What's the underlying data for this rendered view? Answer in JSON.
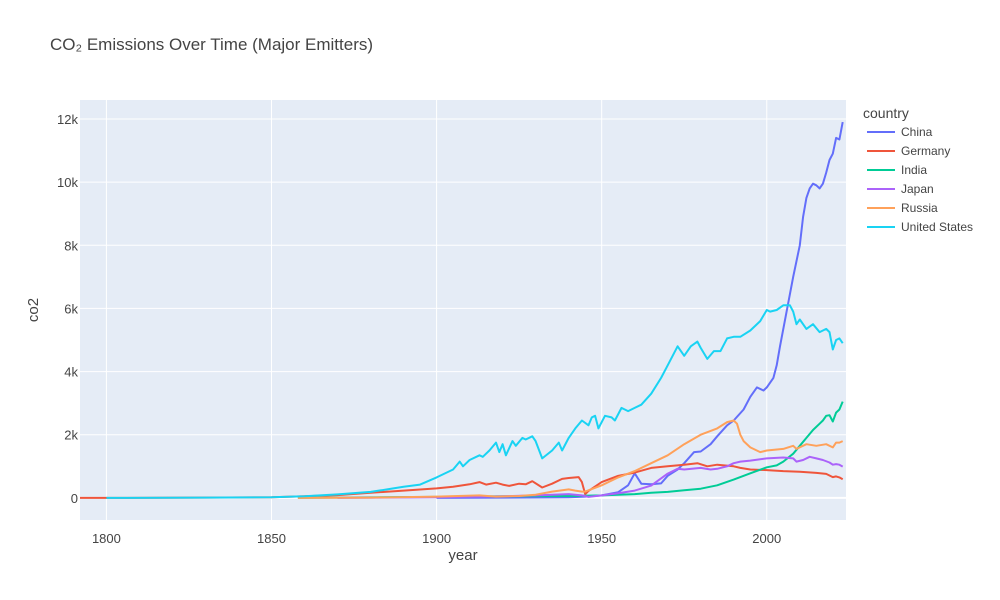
{
  "chart_data": {
    "type": "line",
    "title": "CO₂ Emissions Over Time (Major Emitters)",
    "xlabel": "year",
    "ylabel": "co2",
    "xlim": [
      1792,
      2024
    ],
    "ylim": [
      -700,
      12600
    ],
    "xticks": [
      1800,
      1850,
      1900,
      1950,
      2000
    ],
    "xtick_labels": [
      "1800",
      "1850",
      "1900",
      "1950",
      "2000"
    ],
    "yticks": [
      0,
      2000,
      4000,
      6000,
      8000,
      10000,
      12000
    ],
    "ytick_labels": [
      "0",
      "2k",
      "4k",
      "6k",
      "8k",
      "10k",
      "12k"
    ],
    "grid": true,
    "background": "#e5ecf6",
    "legend_title": "country",
    "legend_position": "right",
    "series": [
      {
        "name": "China",
        "color": "#636efa",
        "points": [
          [
            1900,
            0
          ],
          [
            1940,
            20
          ],
          [
            1945,
            40
          ],
          [
            1950,
            80
          ],
          [
            1955,
            180
          ],
          [
            1958,
            400
          ],
          [
            1960,
            780
          ],
          [
            1962,
            450
          ],
          [
            1965,
            430
          ],
          [
            1968,
            460
          ],
          [
            1970,
            700
          ],
          [
            1973,
            900
          ],
          [
            1975,
            1100
          ],
          [
            1978,
            1450
          ],
          [
            1980,
            1470
          ],
          [
            1983,
            1700
          ],
          [
            1985,
            1950
          ],
          [
            1988,
            2300
          ],
          [
            1990,
            2450
          ],
          [
            1993,
            2800
          ],
          [
            1995,
            3200
          ],
          [
            1997,
            3500
          ],
          [
            1999,
            3400
          ],
          [
            2000,
            3500
          ],
          [
            2002,
            3800
          ],
          [
            2003,
            4200
          ],
          [
            2004,
            4800
          ],
          [
            2006,
            5900
          ],
          [
            2008,
            7000
          ],
          [
            2010,
            8000
          ],
          [
            2011,
            8900
          ],
          [
            2012,
            9500
          ],
          [
            2013,
            9800
          ],
          [
            2014,
            9950
          ],
          [
            2015,
            9900
          ],
          [
            2016,
            9800
          ],
          [
            2017,
            9950
          ],
          [
            2018,
            10300
          ],
          [
            2019,
            10700
          ],
          [
            2020,
            10900
          ],
          [
            2021,
            11400
          ],
          [
            2022,
            11350
          ],
          [
            2023,
            11900
          ]
        ]
      },
      {
        "name": "Germany",
        "color": "#ef553b",
        "points": [
          [
            1792,
            0
          ],
          [
            1800,
            0
          ],
          [
            1850,
            20
          ],
          [
            1860,
            50
          ],
          [
            1870,
            90
          ],
          [
            1880,
            160
          ],
          [
            1890,
            230
          ],
          [
            1900,
            300
          ],
          [
            1905,
            350
          ],
          [
            1910,
            430
          ],
          [
            1913,
            500
          ],
          [
            1915,
            420
          ],
          [
            1918,
            480
          ],
          [
            1920,
            420
          ],
          [
            1922,
            380
          ],
          [
            1925,
            450
          ],
          [
            1927,
            430
          ],
          [
            1929,
            530
          ],
          [
            1932,
            330
          ],
          [
            1935,
            450
          ],
          [
            1938,
            600
          ],
          [
            1940,
            630
          ],
          [
            1943,
            660
          ],
          [
            1944,
            500
          ],
          [
            1945,
            120
          ],
          [
            1946,
            220
          ],
          [
            1950,
            500
          ],
          [
            1955,
            700
          ],
          [
            1960,
            800
          ],
          [
            1965,
            950
          ],
          [
            1970,
            1000
          ],
          [
            1975,
            1050
          ],
          [
            1979,
            1100
          ],
          [
            1982,
            1000
          ],
          [
            1985,
            1050
          ],
          [
            1990,
            1000
          ],
          [
            1992,
            950
          ],
          [
            1995,
            900
          ],
          [
            2000,
            880
          ],
          [
            2005,
            850
          ],
          [
            2010,
            830
          ],
          [
            2015,
            790
          ],
          [
            2018,
            760
          ],
          [
            2020,
            660
          ],
          [
            2021,
            680
          ],
          [
            2022,
            650
          ],
          [
            2023,
            590
          ]
        ]
      },
      {
        "name": "India",
        "color": "#00cc96",
        "points": [
          [
            1858,
            0
          ],
          [
            1900,
            30
          ],
          [
            1920,
            50
          ],
          [
            1940,
            60
          ],
          [
            1950,
            80
          ],
          [
            1955,
            100
          ],
          [
            1960,
            120
          ],
          [
            1965,
            160
          ],
          [
            1970,
            190
          ],
          [
            1975,
            240
          ],
          [
            1980,
            290
          ],
          [
            1985,
            400
          ],
          [
            1990,
            580
          ],
          [
            1995,
            780
          ],
          [
            2000,
            970
          ],
          [
            2003,
            1030
          ],
          [
            2005,
            1150
          ],
          [
            2008,
            1400
          ],
          [
            2010,
            1650
          ],
          [
            2012,
            1900
          ],
          [
            2014,
            2150
          ],
          [
            2016,
            2350
          ],
          [
            2017,
            2450
          ],
          [
            2018,
            2600
          ],
          [
            2019,
            2620
          ],
          [
            2020,
            2420
          ],
          [
            2021,
            2700
          ],
          [
            2022,
            2800
          ],
          [
            2023,
            3050
          ]
        ]
      },
      {
        "name": "Japan",
        "color": "#ab63fa",
        "points": [
          [
            1870,
            0
          ],
          [
            1900,
            20
          ],
          [
            1920,
            50
          ],
          [
            1930,
            80
          ],
          [
            1940,
            120
          ],
          [
            1944,
            80
          ],
          [
            1946,
            30
          ],
          [
            1950,
            80
          ],
          [
            1955,
            150
          ],
          [
            1960,
            230
          ],
          [
            1965,
            390
          ],
          [
            1970,
            770
          ],
          [
            1973,
            920
          ],
          [
            1975,
            900
          ],
          [
            1980,
            950
          ],
          [
            1983,
            900
          ],
          [
            1985,
            920
          ],
          [
            1988,
            1000
          ],
          [
            1990,
            1100
          ],
          [
            1992,
            1150
          ],
          [
            1995,
            1180
          ],
          [
            2000,
            1250
          ],
          [
            2005,
            1280
          ],
          [
            2008,
            1250
          ],
          [
            2009,
            1150
          ],
          [
            2011,
            1200
          ],
          [
            2013,
            1300
          ],
          [
            2015,
            1250
          ],
          [
            2017,
            1200
          ],
          [
            2019,
            1120
          ],
          [
            2020,
            1050
          ],
          [
            2021,
            1070
          ],
          [
            2022,
            1050
          ],
          [
            2023,
            990
          ]
        ]
      },
      {
        "name": "Russia",
        "color": "#ffa15a",
        "points": [
          [
            1858,
            0
          ],
          [
            1880,
            10
          ],
          [
            1900,
            40
          ],
          [
            1913,
            80
          ],
          [
            1918,
            40
          ],
          [
            1925,
            60
          ],
          [
            1930,
            100
          ],
          [
            1935,
            200
          ],
          [
            1940,
            270
          ],
          [
            1942,
            230
          ],
          [
            1944,
            200
          ],
          [
            1945,
            200
          ],
          [
            1946,
            240
          ],
          [
            1950,
            400
          ],
          [
            1955,
            650
          ],
          [
            1960,
            850
          ],
          [
            1965,
            1100
          ],
          [
            1970,
            1350
          ],
          [
            1975,
            1700
          ],
          [
            1980,
            2000
          ],
          [
            1985,
            2200
          ],
          [
            1988,
            2400
          ],
          [
            1990,
            2450
          ],
          [
            1991,
            2350
          ],
          [
            1992,
            2000
          ],
          [
            1993,
            1800
          ],
          [
            1995,
            1600
          ],
          [
            1998,
            1450
          ],
          [
            2000,
            1500
          ],
          [
            2005,
            1550
          ],
          [
            2008,
            1650
          ],
          [
            2009,
            1550
          ],
          [
            2012,
            1700
          ],
          [
            2015,
            1650
          ],
          [
            2018,
            1700
          ],
          [
            2020,
            1600
          ],
          [
            2021,
            1750
          ],
          [
            2022,
            1750
          ],
          [
            2023,
            1800
          ]
        ]
      },
      {
        "name": "United States",
        "color": "#19d3f3",
        "points": [
          [
            1800,
            0
          ],
          [
            1830,
            10
          ],
          [
            1850,
            20
          ],
          [
            1860,
            50
          ],
          [
            1870,
            110
          ],
          [
            1880,
            190
          ],
          [
            1885,
            270
          ],
          [
            1890,
            350
          ],
          [
            1895,
            420
          ],
          [
            1900,
            650
          ],
          [
            1905,
            900
          ],
          [
            1907,
            1150
          ],
          [
            1908,
            1000
          ],
          [
            1910,
            1200
          ],
          [
            1913,
            1350
          ],
          [
            1914,
            1300
          ],
          [
            1916,
            1500
          ],
          [
            1918,
            1750
          ],
          [
            1919,
            1450
          ],
          [
            1920,
            1700
          ],
          [
            1921,
            1350
          ],
          [
            1923,
            1800
          ],
          [
            1924,
            1650
          ],
          [
            1926,
            1900
          ],
          [
            1927,
            1850
          ],
          [
            1929,
            1950
          ],
          [
            1930,
            1800
          ],
          [
            1932,
            1250
          ],
          [
            1935,
            1500
          ],
          [
            1937,
            1750
          ],
          [
            1938,
            1500
          ],
          [
            1940,
            1900
          ],
          [
            1942,
            2200
          ],
          [
            1944,
            2450
          ],
          [
            1946,
            2300
          ],
          [
            1947,
            2550
          ],
          [
            1948,
            2600
          ],
          [
            1949,
            2200
          ],
          [
            1951,
            2600
          ],
          [
            1953,
            2550
          ],
          [
            1954,
            2450
          ],
          [
            1956,
            2850
          ],
          [
            1958,
            2750
          ],
          [
            1960,
            2850
          ],
          [
            1962,
            2950
          ],
          [
            1965,
            3300
          ],
          [
            1968,
            3800
          ],
          [
            1970,
            4200
          ],
          [
            1973,
            4800
          ],
          [
            1975,
            4500
          ],
          [
            1977,
            4800
          ],
          [
            1979,
            4950
          ],
          [
            1980,
            4750
          ],
          [
            1982,
            4400
          ],
          [
            1984,
            4650
          ],
          [
            1986,
            4650
          ],
          [
            1988,
            5050
          ],
          [
            1990,
            5100
          ],
          [
            1992,
            5100
          ],
          [
            1995,
            5300
          ],
          [
            1998,
            5600
          ],
          [
            2000,
            5950
          ],
          [
            2001,
            5900
          ],
          [
            2003,
            5950
          ],
          [
            2005,
            6100
          ],
          [
            2007,
            6100
          ],
          [
            2008,
            5900
          ],
          [
            2009,
            5500
          ],
          [
            2010,
            5650
          ],
          [
            2012,
            5350
          ],
          [
            2014,
            5500
          ],
          [
            2016,
            5250
          ],
          [
            2018,
            5350
          ],
          [
            2019,
            5250
          ],
          [
            2020,
            4700
          ],
          [
            2021,
            5000
          ],
          [
            2022,
            5050
          ],
          [
            2023,
            4900
          ]
        ]
      }
    ]
  }
}
